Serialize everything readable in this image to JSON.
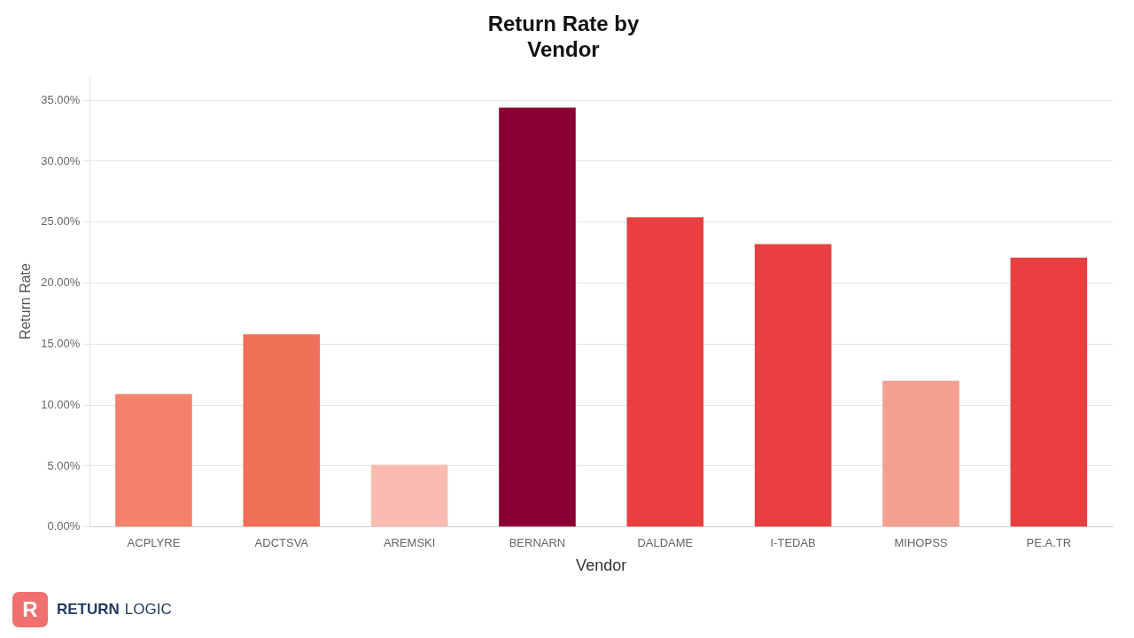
{
  "chart_data": {
    "type": "bar",
    "title": "Return Rate by\nVendor",
    "x_label": "Vendor",
    "y_label": "Return Rate",
    "categories": [
      "ACPLYRE",
      "ADCTSVA",
      "AREMSKI",
      "BERNARN",
      "DALDAME",
      "I-TEDAB",
      "MIHOPSS",
      "PE.A.TR"
    ],
    "values": [
      0.109,
      0.158,
      0.051,
      0.344,
      0.254,
      0.232,
      0.12,
      0.221
    ],
    "colors": [
      "#F4826A",
      "#F07058",
      "#FABCB0",
      "#8B0033",
      "#E84040",
      "#E84040",
      "#F4A090",
      "#E84040"
    ],
    "ylim": [
      0,
      0.37
    ],
    "yticks": [
      {
        "value": 0.0,
        "label": "0.00%"
      },
      {
        "value": 0.05,
        "label": "5.00%"
      },
      {
        "value": 0.1,
        "label": "10.00%"
      },
      {
        "value": 0.15,
        "label": "15.00%"
      },
      {
        "value": 0.2,
        "label": "20.00%"
      },
      {
        "value": 0.25,
        "label": "25.00%"
      },
      {
        "value": 0.3,
        "label": "30.00%"
      },
      {
        "value": 0.35,
        "label": "35.00%"
      }
    ],
    "grid": true,
    "annotations": [
      "R",
      "RETURN",
      "LOGIC"
    ]
  }
}
